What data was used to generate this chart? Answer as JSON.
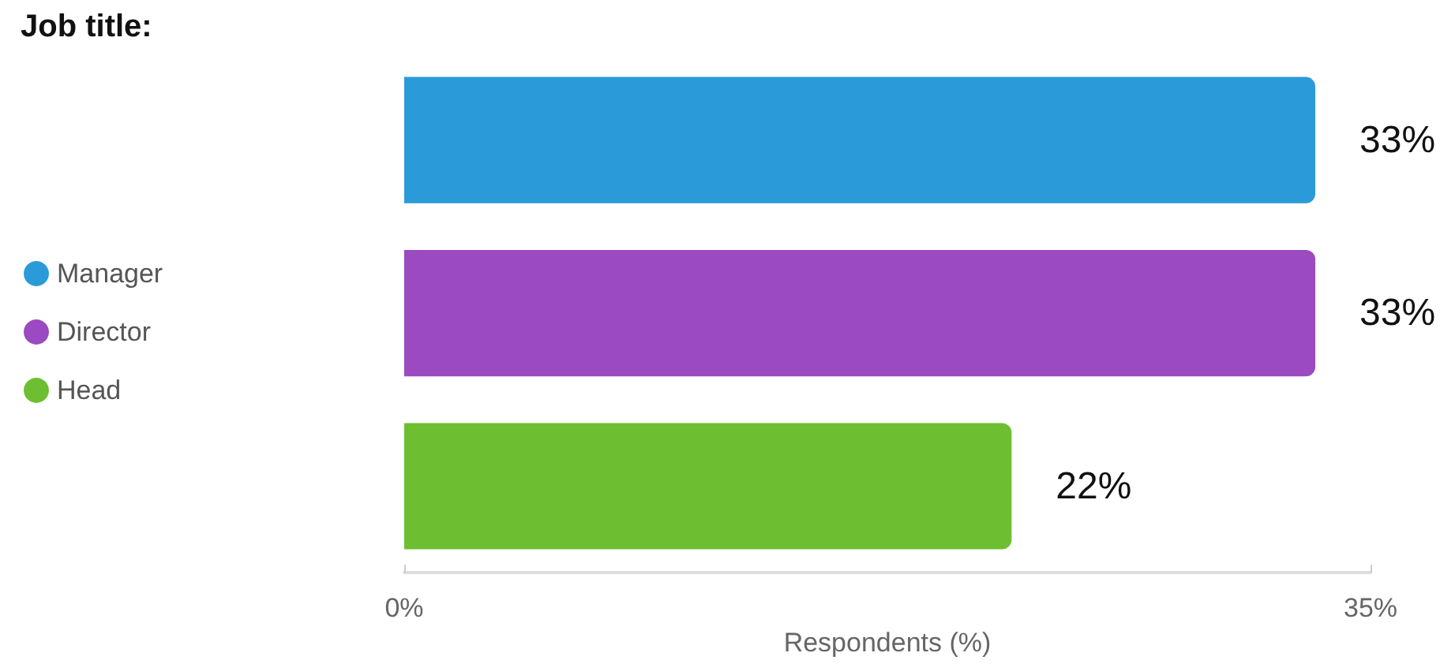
{
  "chart_data": {
    "type": "bar",
    "orientation": "horizontal",
    "stacked": true,
    "title": "Job title:",
    "xlabel": "Respondents (%)",
    "categories": [
      null,
      null,
      null
    ],
    "series": [
      {
        "name": "Manager",
        "color": "#2b9ad8",
        "values": [
          33,
          null,
          null
        ],
        "value_labels": [
          "33%",
          null,
          null
        ]
      },
      {
        "name": "Director",
        "color": "#9b4ac2",
        "values": [
          null,
          33,
          null
        ],
        "value_labels": [
          null,
          "33%",
          null
        ]
      },
      {
        "name": "Head",
        "color": "#6dbf31",
        "values": [
          null,
          null,
          22
        ],
        "value_labels": [
          null,
          null,
          "22%"
        ]
      }
    ],
    "xlim": [
      0,
      35
    ],
    "xticks": [
      {
        "value": 0,
        "label": "0%"
      },
      {
        "value": 35,
        "label": "35%"
      }
    ],
    "grid": false,
    "legend": "left"
  }
}
